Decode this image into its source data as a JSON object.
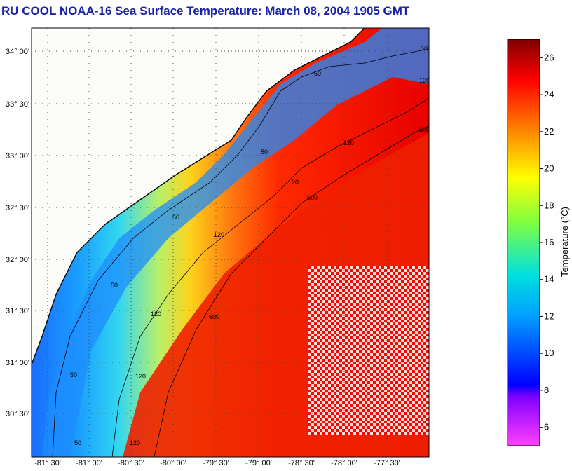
{
  "title": "RU COOL  NOAA-16  Sea Surface Temperature:  March 08, 2004 1905 GMT",
  "map": {
    "lat_labels": [
      "34° 00'",
      "33° 30'",
      "33° 00'",
      "32° 30'",
      "32° 00'",
      "31° 30'",
      "31° 00'",
      "30° 30'"
    ],
    "lon_labels": [
      "-81° 30'",
      "-81° 00'",
      "-80° 30'",
      "-80° 00'",
      "-79° 30'",
      "-79° 00'",
      "-78° 30'",
      "-78° 00'",
      "-77° 30'"
    ],
    "contour_labels": [
      "50",
      "50",
      "50",
      "50",
      "50",
      "50",
      "50",
      "120",
      "120",
      "120",
      "120",
      "120",
      "120",
      "120",
      "600",
      "600",
      "600"
    ]
  },
  "colorbar": {
    "title": "Temperature (°C)",
    "ticks": [
      "26",
      "24",
      "22",
      "20",
      "18",
      "16",
      "14",
      "12",
      "10",
      "8",
      "6"
    ],
    "min": 5,
    "max": 27,
    "colors": [
      "#ff40ff",
      "#0000ff",
      "#00d0ff",
      "#ffff00",
      "#ff0000",
      "#800000"
    ]
  }
}
